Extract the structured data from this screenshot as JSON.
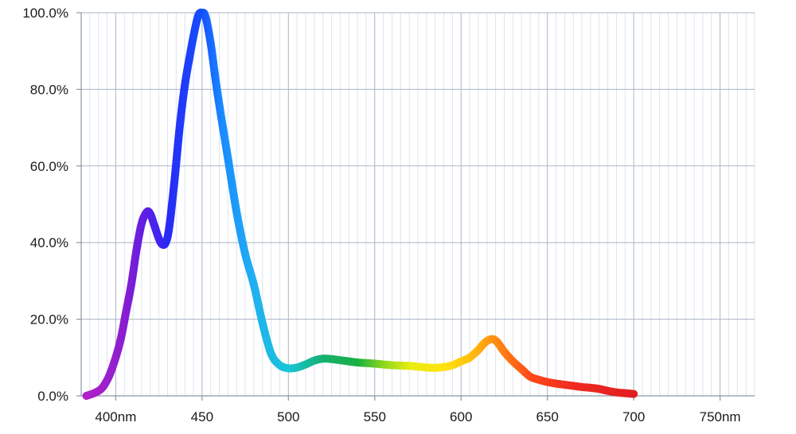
{
  "chart_data": {
    "type": "line",
    "title": "",
    "xlabel": "",
    "ylabel": "",
    "xlim": [
      380,
      770
    ],
    "ylim": [
      0,
      100
    ],
    "grid": true,
    "legend": "none",
    "yticks": [
      {
        "value": 0,
        "label": "0.0%"
      },
      {
        "value": 20,
        "label": "20.0%"
      },
      {
        "value": 40,
        "label": "40.0%"
      },
      {
        "value": 60,
        "label": "60.0%"
      },
      {
        "value": 80,
        "label": "80.0%"
      },
      {
        "value": 100,
        "label": "100.0%"
      }
    ],
    "xticks": [
      {
        "value": 400,
        "label": "400nm"
      },
      {
        "value": 450,
        "label": "450"
      },
      {
        "value": 500,
        "label": "500"
      },
      {
        "value": 550,
        "label": "550"
      },
      {
        "value": 600,
        "label": "600"
      },
      {
        "value": 650,
        "label": "650"
      },
      {
        "value": 700,
        "label": "700"
      },
      {
        "value": 750,
        "label": "750nm"
      }
    ],
    "minor_x_step": 5,
    "series": [
      {
        "line_style": "spectral-gradient",
        "points": [
          [
            383,
            0.0
          ],
          [
            385,
            0.3
          ],
          [
            388,
            0.8
          ],
          [
            392,
            2.0
          ],
          [
            396,
            5.0
          ],
          [
            400,
            10.0
          ],
          [
            403,
            15.0
          ],
          [
            406,
            22.0
          ],
          [
            409,
            29.0
          ],
          [
            412,
            38.0
          ],
          [
            415,
            45.0
          ],
          [
            418,
            48.0
          ],
          [
            420,
            47.5
          ],
          [
            422,
            45.0
          ],
          [
            425,
            41.0
          ],
          [
            427,
            39.5
          ],
          [
            429,
            40.0
          ],
          [
            431,
            44.0
          ],
          [
            434,
            56.0
          ],
          [
            437,
            70.0
          ],
          [
            440,
            81.0
          ],
          [
            443,
            89.0
          ],
          [
            446,
            96.0
          ],
          [
            448,
            99.5
          ],
          [
            450,
            100.0
          ],
          [
            452,
            99.0
          ],
          [
            455,
            92.0
          ],
          [
            458,
            82.0
          ],
          [
            461,
            73.0
          ],
          [
            465,
            62.0
          ],
          [
            470,
            48.0
          ],
          [
            475,
            37.0
          ],
          [
            480,
            29.0
          ],
          [
            485,
            19.0
          ],
          [
            490,
            11.0
          ],
          [
            495,
            8.0
          ],
          [
            500,
            7.2
          ],
          [
            505,
            7.4
          ],
          [
            510,
            8.2
          ],
          [
            515,
            9.2
          ],
          [
            520,
            9.7
          ],
          [
            525,
            9.6
          ],
          [
            530,
            9.3
          ],
          [
            535,
            9.0
          ],
          [
            540,
            8.7
          ],
          [
            550,
            8.4
          ],
          [
            560,
            8.0
          ],
          [
            570,
            7.8
          ],
          [
            580,
            7.4
          ],
          [
            585,
            7.3
          ],
          [
            590,
            7.5
          ],
          [
            595,
            8.0
          ],
          [
            600,
            9.0
          ],
          [
            605,
            10.0
          ],
          [
            610,
            12.0
          ],
          [
            614,
            14.0
          ],
          [
            618,
            14.8
          ],
          [
            621,
            14.0
          ],
          [
            625,
            11.5
          ],
          [
            630,
            9.0
          ],
          [
            635,
            7.0
          ],
          [
            640,
            5.0
          ],
          [
            645,
            4.2
          ],
          [
            650,
            3.6
          ],
          [
            655,
            3.2
          ],
          [
            660,
            2.9
          ],
          [
            665,
            2.6
          ],
          [
            670,
            2.3
          ],
          [
            675,
            2.1
          ],
          [
            680,
            1.8
          ],
          [
            685,
            1.3
          ],
          [
            690,
            0.9
          ],
          [
            695,
            0.7
          ],
          [
            700,
            0.5
          ]
        ]
      }
    ],
    "colors": {
      "grid_major": "#a9b5c4",
      "grid_minor": "#dde4ec",
      "axis": "#8a96a6",
      "spectrum_stops": [
        {
          "nm": 383,
          "color": "#b020c8"
        },
        {
          "nm": 405,
          "color": "#8a1ed0"
        },
        {
          "nm": 418,
          "color": "#5a1ee8"
        },
        {
          "nm": 430,
          "color": "#2a2af5"
        },
        {
          "nm": 450,
          "color": "#1450ff"
        },
        {
          "nm": 462,
          "color": "#1a8cff"
        },
        {
          "nm": 480,
          "color": "#20b0f0"
        },
        {
          "nm": 500,
          "color": "#18c6d6"
        },
        {
          "nm": 520,
          "color": "#16b070"
        },
        {
          "nm": 540,
          "color": "#18b040"
        },
        {
          "nm": 555,
          "color": "#8cd820"
        },
        {
          "nm": 570,
          "color": "#e8ec10"
        },
        {
          "nm": 590,
          "color": "#ffe410"
        },
        {
          "nm": 605,
          "color": "#ffc010"
        },
        {
          "nm": 620,
          "color": "#ff8c12"
        },
        {
          "nm": 640,
          "color": "#ff4a18"
        },
        {
          "nm": 665,
          "color": "#f02a22"
        },
        {
          "nm": 700,
          "color": "#e02020"
        }
      ]
    }
  }
}
